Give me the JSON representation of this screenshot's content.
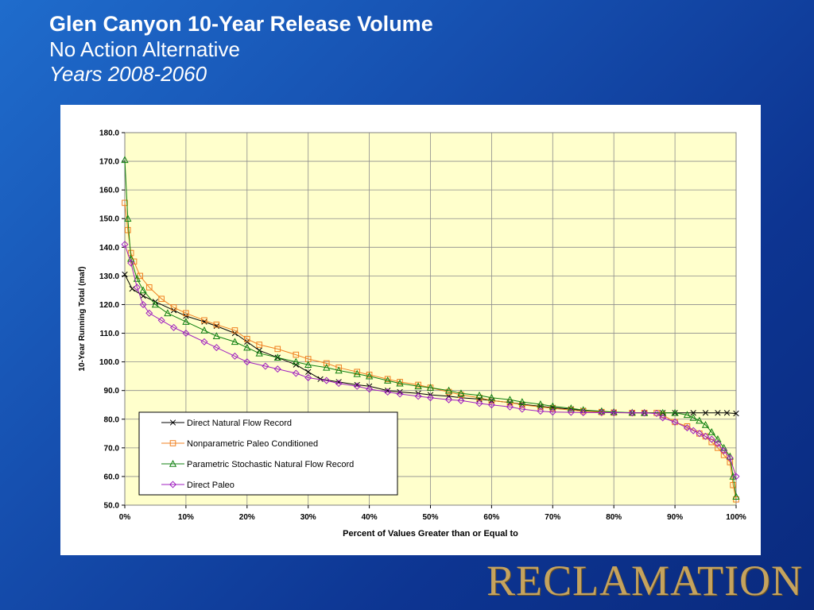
{
  "slide": {
    "title": "Glen Canyon 10-Year Release Volume",
    "subtitle": "No Action Alternative",
    "years": "Years 2008-2060",
    "logo": "RECLAMATION"
  },
  "chart_data": {
    "type": "line",
    "xlabel": "Percent of Values Greater than or Equal to",
    "ylabel": "10-Year Running Total (maf)",
    "xlim": [
      0,
      100
    ],
    "ylim": [
      50,
      180
    ],
    "x_ticks": [
      0,
      10,
      20,
      30,
      40,
      50,
      60,
      70,
      80,
      90,
      100
    ],
    "x_tick_labels": [
      "0%",
      "10%",
      "20%",
      "30%",
      "40%",
      "50%",
      "60%",
      "70%",
      "80%",
      "90%",
      "100%"
    ],
    "y_ticks": [
      50,
      60,
      70,
      80,
      90,
      100,
      110,
      120,
      130,
      140,
      150,
      160,
      170,
      180
    ],
    "y_tick_labels": [
      "50.0",
      "60.0",
      "70.0",
      "80.0",
      "90.0",
      "100.0",
      "110.0",
      "120.0",
      "130.0",
      "140.0",
      "150.0",
      "160.0",
      "170.0",
      "180.0"
    ],
    "grid": true,
    "plot_background": "#ffffcc",
    "legend_position": "bottom-left",
    "series": [
      {
        "name": "Direct Natural Flow Record",
        "color": "#000000",
        "marker": "x",
        "points": [
          [
            0,
            130.5
          ],
          [
            1.2,
            125.5
          ],
          [
            3,
            123
          ],
          [
            5,
            121
          ],
          [
            8,
            118
          ],
          [
            10,
            116
          ],
          [
            13,
            114
          ],
          [
            15,
            112.5
          ],
          [
            18,
            110
          ],
          [
            20,
            107
          ],
          [
            22,
            104
          ],
          [
            25,
            101.5
          ],
          [
            28,
            99
          ],
          [
            30,
            96.5
          ],
          [
            32,
            94
          ],
          [
            35,
            93
          ],
          [
            38,
            92
          ],
          [
            40,
            91.5
          ],
          [
            43,
            90
          ],
          [
            45,
            89.5
          ],
          [
            48,
            89
          ],
          [
            50,
            88.5
          ],
          [
            53,
            88
          ],
          [
            55,
            87.5
          ],
          [
            58,
            87
          ],
          [
            60,
            86.5
          ],
          [
            63,
            85.8
          ],
          [
            65,
            85.2
          ],
          [
            68,
            84.5
          ],
          [
            70,
            84
          ],
          [
            73,
            83.5
          ],
          [
            75,
            83
          ],
          [
            78,
            82.6
          ],
          [
            80,
            82.4
          ],
          [
            83,
            82.2
          ],
          [
            85,
            82.2
          ],
          [
            88,
            82.2
          ],
          [
            90,
            82.2
          ],
          [
            93,
            82.2
          ],
          [
            95,
            82.2
          ],
          [
            97,
            82.2
          ],
          [
            98.5,
            82.2
          ],
          [
            100,
            82
          ]
        ]
      },
      {
        "name": "Nonparametric Paleo Conditioned",
        "color": "#f08020",
        "marker": "square",
        "points": [
          [
            0,
            155.5
          ],
          [
            0.5,
            146
          ],
          [
            1,
            138
          ],
          [
            1.5,
            135
          ],
          [
            2.5,
            130
          ],
          [
            4,
            126
          ],
          [
            6,
            122
          ],
          [
            8,
            119
          ],
          [
            10,
            117
          ],
          [
            13,
            114.5
          ],
          [
            15,
            113
          ],
          [
            18,
            111
          ],
          [
            20,
            108
          ],
          [
            22,
            106
          ],
          [
            25,
            104.5
          ],
          [
            28,
            102.5
          ],
          [
            30,
            101
          ],
          [
            33,
            99.5
          ],
          [
            35,
            98
          ],
          [
            38,
            96.5
          ],
          [
            40,
            95.5
          ],
          [
            43,
            94
          ],
          [
            45,
            93
          ],
          [
            48,
            92
          ],
          [
            50,
            91
          ],
          [
            53,
            89.5
          ],
          [
            55,
            88.5
          ],
          [
            58,
            87.5
          ],
          [
            60,
            86.5
          ],
          [
            63,
            85.8
          ],
          [
            65,
            85
          ],
          [
            68,
            84.3
          ],
          [
            70,
            83.8
          ],
          [
            73,
            83.2
          ],
          [
            75,
            82.8
          ],
          [
            78,
            82.5
          ],
          [
            80,
            82.3
          ],
          [
            83,
            82.2
          ],
          [
            85,
            82.2
          ],
          [
            87,
            82.2
          ],
          [
            88,
            81.5
          ],
          [
            90,
            79
          ],
          [
            92,
            77.5
          ],
          [
            94,
            75
          ],
          [
            95,
            74
          ],
          [
            96,
            72
          ],
          [
            97,
            70
          ],
          [
            98,
            67.5
          ],
          [
            99,
            65
          ],
          [
            99.5,
            57
          ],
          [
            100,
            52
          ]
        ]
      },
      {
        "name": "Parametric Stochastic Natural Flow Record",
        "color": "#108010",
        "marker": "triangle",
        "points": [
          [
            0,
            170.5
          ],
          [
            0.5,
            150
          ],
          [
            1,
            136
          ],
          [
            2,
            129
          ],
          [
            3,
            125
          ],
          [
            5,
            120
          ],
          [
            7,
            117
          ],
          [
            10,
            114
          ],
          [
            13,
            111
          ],
          [
            15,
            109
          ],
          [
            18,
            107
          ],
          [
            20,
            105
          ],
          [
            22,
            103
          ],
          [
            25,
            101.5
          ],
          [
            28,
            100
          ],
          [
            30,
            99
          ],
          [
            33,
            98
          ],
          [
            35,
            97
          ],
          [
            38,
            95.8
          ],
          [
            40,
            95
          ],
          [
            43,
            93.5
          ],
          [
            45,
            92.5
          ],
          [
            48,
            91.5
          ],
          [
            50,
            91
          ],
          [
            53,
            90
          ],
          [
            55,
            89
          ],
          [
            58,
            88.3
          ],
          [
            60,
            87.5
          ],
          [
            63,
            86.8
          ],
          [
            65,
            86
          ],
          [
            68,
            85.2
          ],
          [
            70,
            84.5
          ],
          [
            73,
            83.8
          ],
          [
            75,
            83.2
          ],
          [
            78,
            82.8
          ],
          [
            80,
            82.5
          ],
          [
            83,
            82.3
          ],
          [
            85,
            82.2
          ],
          [
            88,
            82.2
          ],
          [
            90,
            82.2
          ],
          [
            92,
            81.5
          ],
          [
            93,
            80.5
          ],
          [
            94,
            79.5
          ],
          [
            95,
            78
          ],
          [
            96,
            75.5
          ],
          [
            97,
            73
          ],
          [
            98,
            70
          ],
          [
            99,
            67
          ],
          [
            99.5,
            60
          ],
          [
            100,
            53
          ]
        ]
      },
      {
        "name": "Direct Paleo",
        "color": "#a020c0",
        "marker": "diamond",
        "points": [
          [
            0,
            141
          ],
          [
            1,
            134.5
          ],
          [
            2,
            126
          ],
          [
            3,
            120
          ],
          [
            4,
            117
          ],
          [
            6,
            114.5
          ],
          [
            8,
            112
          ],
          [
            10,
            110
          ],
          [
            13,
            107
          ],
          [
            15,
            105
          ],
          [
            18,
            102
          ],
          [
            20,
            100
          ],
          [
            23,
            98.5
          ],
          [
            25,
            97.5
          ],
          [
            28,
            96
          ],
          [
            30,
            94.5
          ],
          [
            33,
            93.5
          ],
          [
            35,
            92.5
          ],
          [
            38,
            91.5
          ],
          [
            40,
            90.5
          ],
          [
            43,
            89.5
          ],
          [
            45,
            88.8
          ],
          [
            48,
            88
          ],
          [
            50,
            87.5
          ],
          [
            53,
            86.8
          ],
          [
            55,
            86.5
          ],
          [
            58,
            85.5
          ],
          [
            60,
            85
          ],
          [
            63,
            84.3
          ],
          [
            65,
            83.5
          ],
          [
            68,
            82.8
          ],
          [
            70,
            82.5
          ],
          [
            73,
            82.4
          ],
          [
            75,
            82.3
          ],
          [
            78,
            82.3
          ],
          [
            80,
            82.3
          ],
          [
            83,
            82.2
          ],
          [
            85,
            82.2
          ],
          [
            87,
            82
          ],
          [
            88,
            80.5
          ],
          [
            90,
            79
          ],
          [
            92,
            77
          ],
          [
            93,
            76
          ],
          [
            94,
            75
          ],
          [
            95,
            74
          ],
          [
            96,
            73
          ],
          [
            97,
            71.5
          ],
          [
            98,
            69
          ],
          [
            99,
            66.5
          ],
          [
            100,
            60
          ]
        ]
      }
    ]
  }
}
